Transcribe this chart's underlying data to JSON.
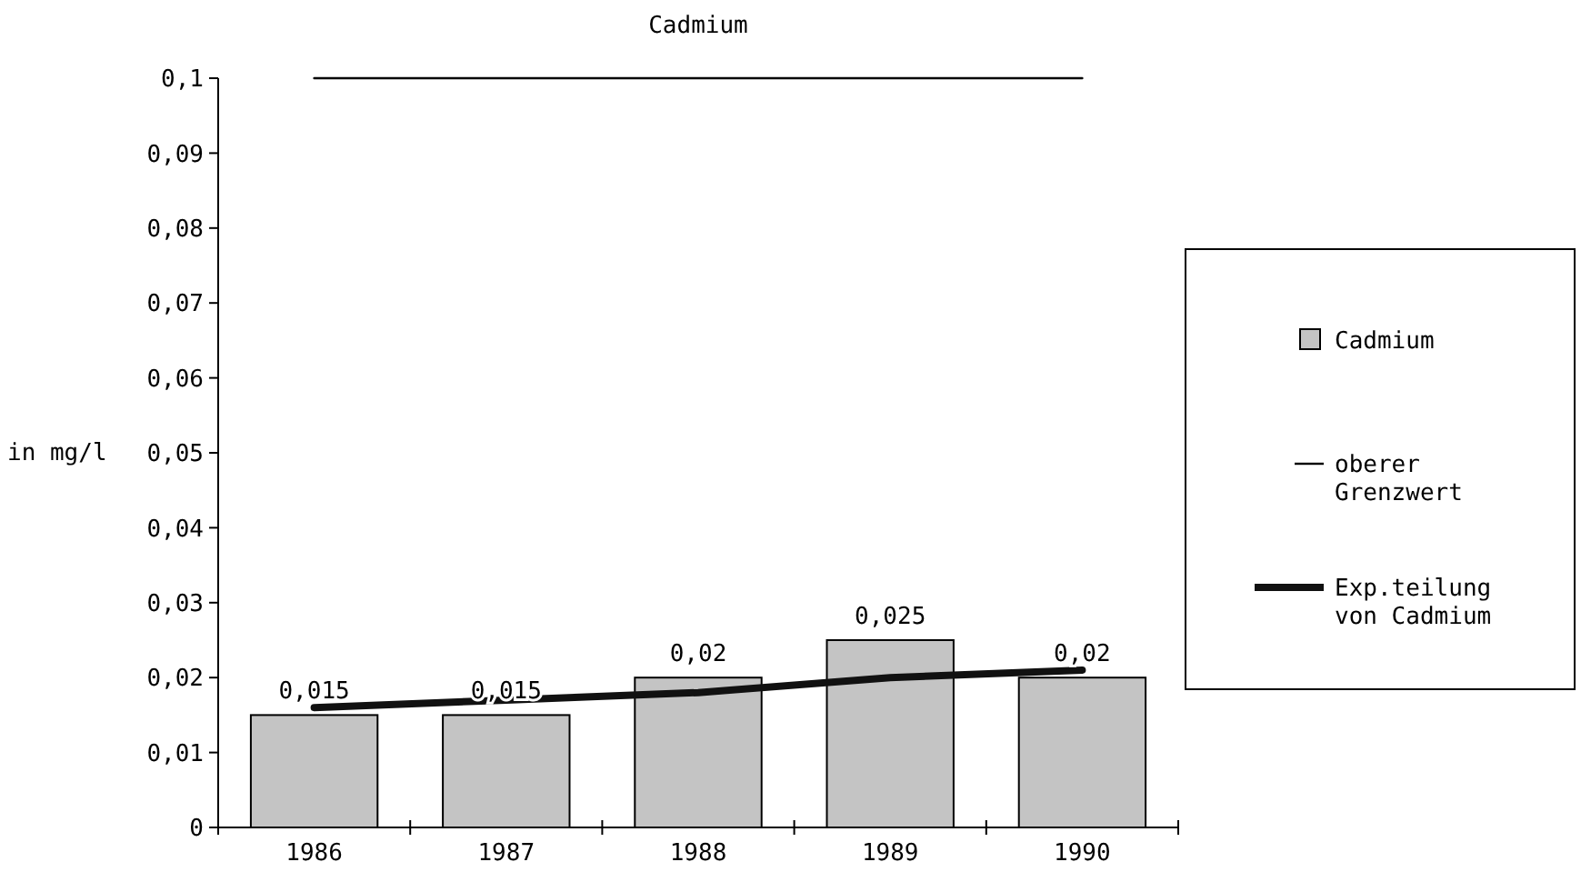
{
  "chart_data": {
    "type": "bar",
    "title": "Cadmium",
    "ylabel": "in mg/l",
    "categories": [
      "1986",
      "1987",
      "1988",
      "1989",
      "1990"
    ],
    "series": [
      {
        "name": "Cadmium",
        "color": "#c4c4c4",
        "values": [
          0.015,
          0.015,
          0.02,
          0.025,
          0.02
        ],
        "value_labels": [
          "0,015",
          "0,015",
          "0,02",
          "0,025",
          "0,02"
        ]
      },
      {
        "name": "oberer Grenzwert",
        "type": "line",
        "color": "#000000",
        "values": [
          0.1,
          0.1,
          0.1,
          0.1,
          0.1
        ]
      },
      {
        "name": "Exp.teilung von Cadmium",
        "type": "line",
        "color": "#111111",
        "values": [
          0.016,
          0.017,
          0.018,
          0.02,
          0.021
        ]
      }
    ],
    "ylim": [
      0,
      0.1
    ],
    "yticks": [
      {
        "value": 0,
        "label": "0"
      },
      {
        "value": 0.01,
        "label": "0,01"
      },
      {
        "value": 0.02,
        "label": "0,02"
      },
      {
        "value": 0.03,
        "label": "0,03"
      },
      {
        "value": 0.04,
        "label": "0,04"
      },
      {
        "value": 0.05,
        "label": "0,05"
      },
      {
        "value": 0.06,
        "label": "0,06"
      },
      {
        "value": 0.07,
        "label": "0,07"
      },
      {
        "value": 0.08,
        "label": "0,08"
      },
      {
        "value": 0.09,
        "label": "0,09"
      },
      {
        "value": 0.1,
        "label": "0,1"
      }
    ],
    "legend": "right",
    "grid": false
  }
}
